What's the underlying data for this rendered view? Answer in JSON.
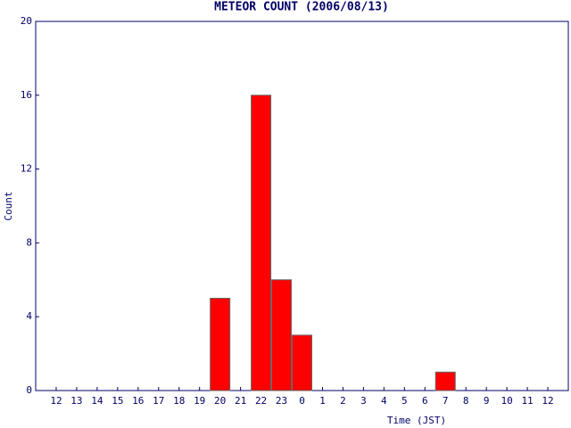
{
  "chart_data": {
    "type": "bar",
    "title": "METEOR COUNT (2006/08/13)",
    "x_label": "Time (JST)",
    "y_label": "Count",
    "categories": [
      "12",
      "13",
      "14",
      "15",
      "16",
      "17",
      "18",
      "19",
      "20",
      "21",
      "22",
      "23",
      "0",
      "1",
      "2",
      "3",
      "4",
      "5",
      "6",
      "7",
      "8",
      "9",
      "10",
      "11",
      "12"
    ],
    "values": [
      0,
      0,
      0,
      0,
      0,
      0,
      0,
      0,
      5,
      0,
      16,
      6,
      3,
      0,
      0,
      0,
      0,
      0,
      0,
      1,
      0,
      0,
      0,
      0,
      0
    ],
    "color": "#ff0000",
    "ylim": [
      0,
      20
    ],
    "yticks": [
      0,
      4,
      8,
      12,
      16,
      20
    ]
  }
}
